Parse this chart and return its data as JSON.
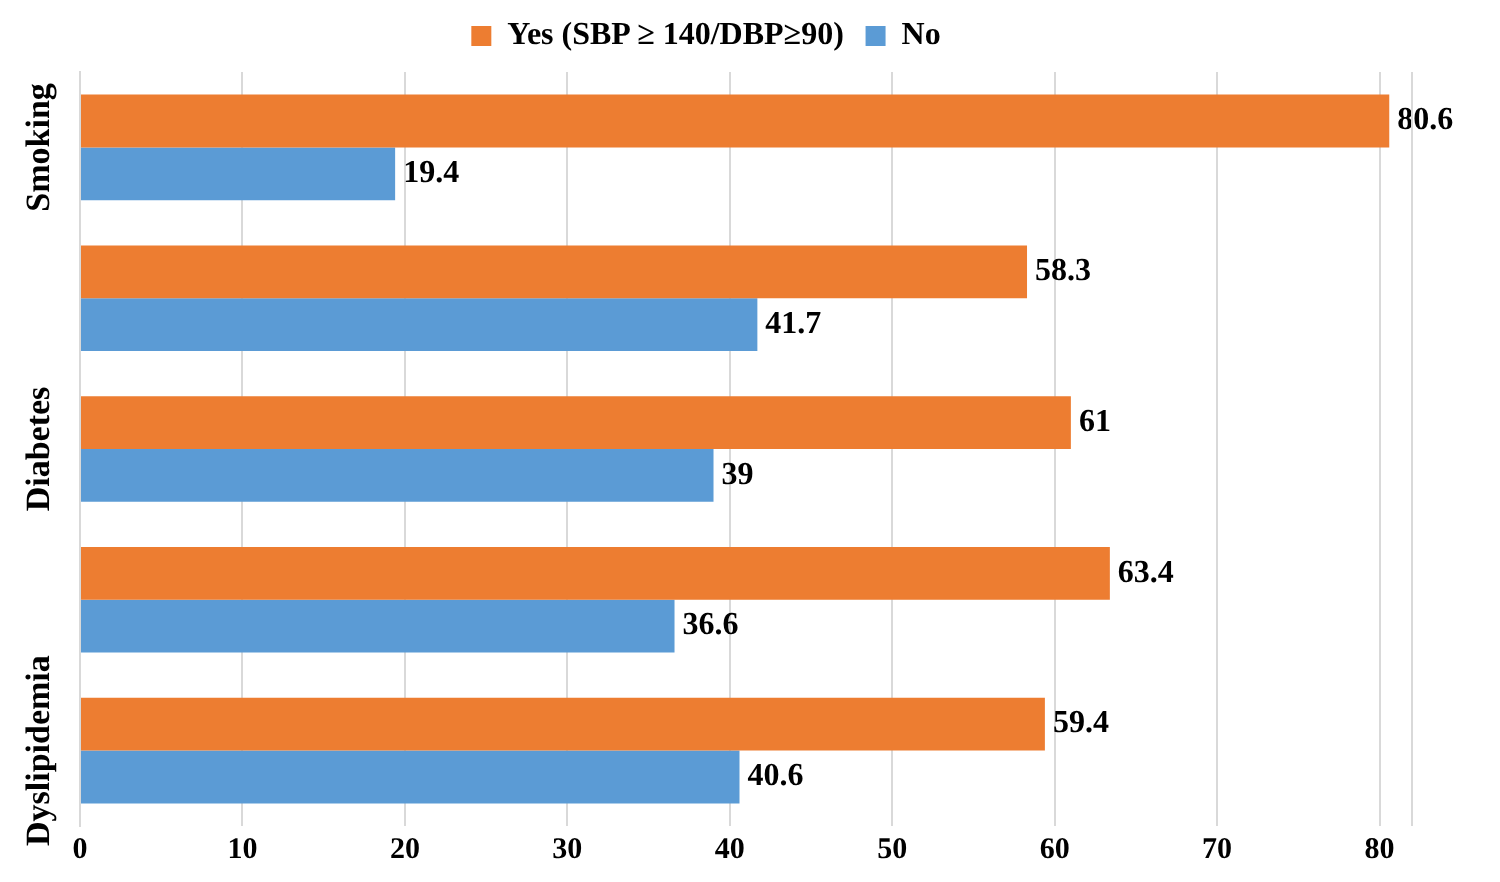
{
  "chart_data": {
    "type": "bar",
    "orientation": "horizontal",
    "categories": [
      "Smoking",
      null,
      "Diabetes",
      null,
      "Dyslipidemia"
    ],
    "series": [
      {
        "name": "Yes (SBP ≥ 140/DBP≥90)",
        "color": "#ed7d31",
        "values": [
          80.6,
          58.3,
          61,
          63.4,
          59.4
        ]
      },
      {
        "name": "No",
        "color": "#5b9bd5",
        "values": [
          19.4,
          41.7,
          39,
          36.6,
          40.6
        ]
      }
    ],
    "xlim": [
      0,
      82
    ],
    "xticks": [
      0,
      10,
      20,
      30,
      40,
      50,
      60,
      70,
      80
    ],
    "grid": "x",
    "legend": "top",
    "data_labels": true
  }
}
